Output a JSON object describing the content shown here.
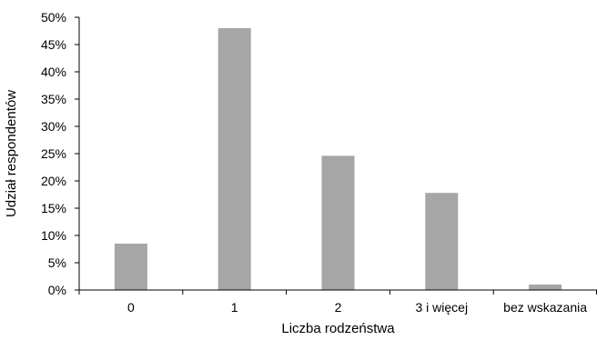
{
  "chart_data": {
    "type": "bar",
    "title": "",
    "xlabel": "Liczba rodzeństwa",
    "ylabel": "Udział respondentów",
    "categories": [
      "0",
      "1",
      "2",
      "3 i więcej",
      "bez wskazania"
    ],
    "values": [
      8.5,
      48.0,
      24.6,
      17.8,
      1.0
    ],
    "ylim": [
      0,
      50
    ],
    "yticks": [
      0,
      5,
      10,
      15,
      20,
      25,
      30,
      35,
      40,
      45,
      50
    ],
    "ytick_suffix": "%",
    "grid": false,
    "legend": "none",
    "bar_color": "#a6a6a6",
    "axis_color": "#000000"
  }
}
